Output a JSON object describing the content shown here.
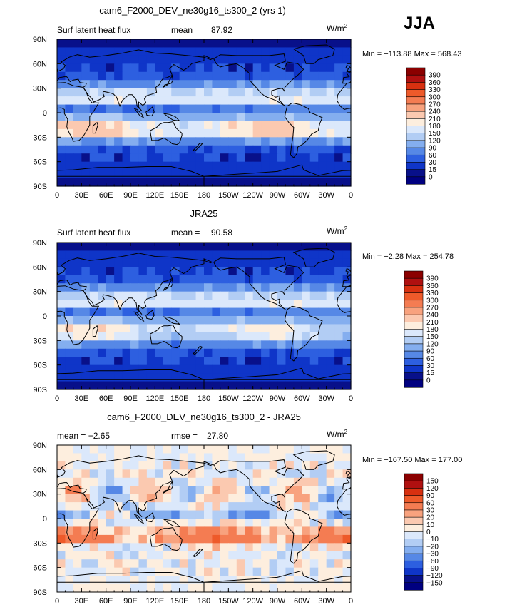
{
  "season": "JJA",
  "chart_data": [
    {
      "type": "heatmap",
      "title": "cam6_F2000_DEV_ne30g16_ts300_2 (yrs 1)",
      "left_label": "Surf latent heat flux",
      "stat_label": "mean =",
      "stat_value": "87.92",
      "units_base": "W/m",
      "units_exp": "2",
      "minmax": "Min = −113.88 Max = 568.43",
      "xticks": [
        "0",
        "30E",
        "60E",
        "90E",
        "120E",
        "150E",
        "180",
        "150W",
        "120W",
        "90W",
        "60W",
        "30W",
        "0"
      ],
      "yticks": [
        "90N",
        "60N",
        "30N",
        "0",
        "30S",
        "60S",
        "90S"
      ],
      "legend_levels": [
        "390",
        "360",
        "330",
        "300",
        "270",
        "240",
        "210",
        "180",
        "150",
        "120",
        "90",
        "60",
        "30",
        "15",
        "0"
      ],
      "legend_colors": [
        "#8b0000",
        "#b01010",
        "#d83010",
        "#ee5a2a",
        "#f47c52",
        "#f8a27e",
        "#fbc9b0",
        "#fdeede",
        "#dbe8fb",
        "#b2cdf4",
        "#84aeef",
        "#5688e6",
        "#2d5fe0",
        "#0f35c8",
        "#08108a",
        "#000080"
      ],
      "field": "model"
    },
    {
      "type": "heatmap",
      "title": "JRA25",
      "left_label": "Surf latent heat flux",
      "stat_label": "mean =",
      "stat_value": "90.58",
      "units_base": "W/m",
      "units_exp": "2",
      "minmax": "Min = −2.28 Max = 254.78",
      "xticks": [
        "0",
        "30E",
        "60E",
        "90E",
        "120E",
        "150E",
        "180",
        "150W",
        "120W",
        "90W",
        "60W",
        "30W",
        "0"
      ],
      "yticks": [
        "90N",
        "60N",
        "30N",
        "0",
        "30S",
        "60S",
        "90S"
      ],
      "legend_levels": [
        "390",
        "360",
        "330",
        "300",
        "270",
        "240",
        "210",
        "180",
        "150",
        "120",
        "90",
        "60",
        "30",
        "15",
        "0"
      ],
      "legend_colors": [
        "#8b0000",
        "#b01010",
        "#d83010",
        "#ee5a2a",
        "#f47c52",
        "#f8a27e",
        "#fbc9b0",
        "#fdeede",
        "#dbe8fb",
        "#b2cdf4",
        "#84aeef",
        "#5688e6",
        "#2d5fe0",
        "#0f35c8",
        "#08108a",
        "#000080"
      ],
      "field": "obs"
    },
    {
      "type": "heatmap",
      "title": "cam6_F2000_DEV_ne30g16_ts300_2 - JRA25",
      "left_label": "mean =  −2.65",
      "stat_label": "rmse =",
      "stat_value": "27.80",
      "units_base": "W/m",
      "units_exp": "2",
      "minmax": "Min = −167.50 Max = 177.00",
      "xticks": [
        "0",
        "30E",
        "60E",
        "90E",
        "120E",
        "150E",
        "180",
        "150W",
        "120W",
        "90W",
        "60W",
        "30W",
        "0"
      ],
      "yticks": [
        "90N",
        "60N",
        "30N",
        "0",
        "30S",
        "60S",
        "90S"
      ],
      "legend_levels": [
        "150",
        "120",
        "90",
        "60",
        "30",
        "20",
        "10",
        "0",
        "−10",
        "−20",
        "−30",
        "−60",
        "−90",
        "−120",
        "−150"
      ],
      "legend_colors": [
        "#8b0000",
        "#b01010",
        "#d83010",
        "#ee5a2a",
        "#f47c52",
        "#f8a27e",
        "#fbc9b0",
        "#fdeede",
        "#dbe8fb",
        "#b2cdf4",
        "#84aeef",
        "#5688e6",
        "#2d5fe0",
        "#0f35c8",
        "#08108a",
        "#000080"
      ],
      "field": "diff"
    }
  ]
}
